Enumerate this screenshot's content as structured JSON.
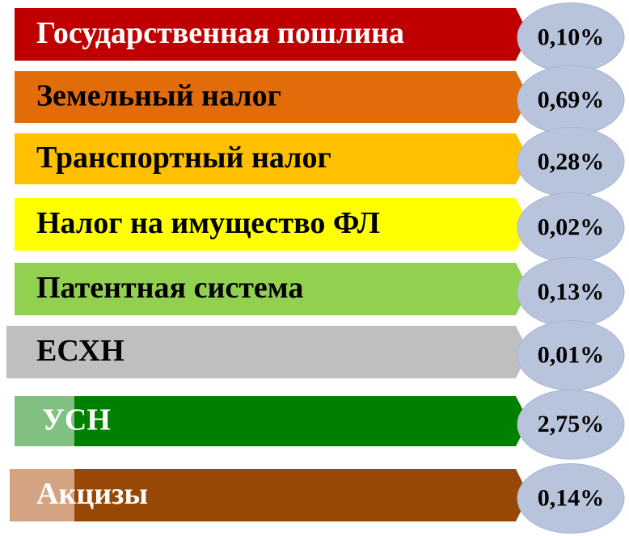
{
  "items": [
    {
      "label": "Государственная пошлина",
      "value": "0,10%",
      "color": "#c00000",
      "text_color": "#ffffff"
    },
    {
      "label": "Земельный налог",
      "value": "0,69%",
      "color": "#e36c0a",
      "text_color": "#000000"
    },
    {
      "label": "Транспортный налог",
      "value": "0,28%",
      "color": "#ffc000",
      "text_color": "#000000"
    },
    {
      "label": "Налог на имущество ФЛ",
      "value": "0,02%",
      "color": "#ffff00",
      "text_color": "#000000"
    },
    {
      "label": "Патентная система",
      "value": "0,13%",
      "color": "#92d050",
      "text_color": "#000000"
    },
    {
      "label": "ЕСХН",
      "value": "0,01%",
      "color": "#bfbfbf",
      "text_color": "#000000"
    },
    {
      "label": "УСН",
      "value": "2,75%",
      "color": "#008000",
      "text_color": "#ffffff",
      "accent": "#80c080"
    },
    {
      "label": "Акцизы",
      "value": "0,14%",
      "color": "#984806",
      "text_color": "#ffffff",
      "accent": "#d4a482"
    }
  ]
}
